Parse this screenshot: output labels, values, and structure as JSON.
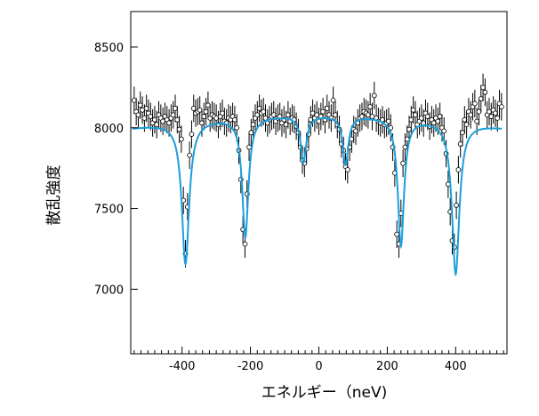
{
  "chart_data": {
    "type": "scatter",
    "xlabel": "エネルギー（neV)",
    "ylabel": "散乱強度",
    "xlim": [
      -550,
      550
    ],
    "ylim": [
      6600,
      8720
    ],
    "xticks": [
      -400,
      -200,
      0,
      200,
      400
    ],
    "yticks": [
      7000,
      7500,
      8000,
      8500
    ],
    "grid": false,
    "colors": {
      "data": "#000000",
      "fit": "#1a9fdc"
    },
    "fit": {
      "baseline": 8080,
      "curvature": -80,
      "dips": [
        {
          "center": -390,
          "depth": 880,
          "width": 13
        },
        {
          "center": -215,
          "depth": 740,
          "width": 11
        },
        {
          "center": -45,
          "depth": 290,
          "width": 10
        },
        {
          "center": 78,
          "depth": 300,
          "width": 10
        },
        {
          "center": 240,
          "depth": 790,
          "width": 11
        },
        {
          "center": 400,
          "depth": 940,
          "width": 13
        }
      ]
    },
    "series": [
      {
        "points": [
          [
            -540,
            8170
          ],
          [
            -534,
            8100
          ],
          [
            -528,
            8080
          ],
          [
            -522,
            8140
          ],
          [
            -516,
            8110
          ],
          [
            -510,
            8060
          ],
          [
            -504,
            8120
          ],
          [
            -498,
            8090
          ],
          [
            -492,
            8070
          ],
          [
            -486,
            8030
          ],
          [
            -480,
            8050
          ],
          [
            -474,
            8020
          ],
          [
            -468,
            8080
          ],
          [
            -462,
            8060
          ],
          [
            -456,
            8040
          ],
          [
            -450,
            8070
          ],
          [
            -444,
            8050
          ],
          [
            -438,
            8030
          ],
          [
            -432,
            8060
          ],
          [
            -426,
            8080
          ],
          [
            -420,
            8120
          ],
          [
            -414,
            8050
          ],
          [
            -408,
            7990
          ],
          [
            -402,
            7930
          ],
          [
            -396,
            7550
          ],
          [
            -390,
            7220
          ],
          [
            -384,
            7510
          ],
          [
            -378,
            7830
          ],
          [
            -372,
            7960
          ],
          [
            -366,
            8120
          ],
          [
            -360,
            8090
          ],
          [
            -354,
            8100
          ],
          [
            -348,
            8110
          ],
          [
            -342,
            8030
          ],
          [
            -336,
            8070
          ],
          [
            -330,
            8100
          ],
          [
            -324,
            8140
          ],
          [
            -318,
            8060
          ],
          [
            -312,
            8080
          ],
          [
            -306,
            8070
          ],
          [
            -300,
            8060
          ],
          [
            -294,
            8020
          ],
          [
            -288,
            8070
          ],
          [
            -282,
            8090
          ],
          [
            -276,
            8040
          ],
          [
            -270,
            8030
          ],
          [
            -264,
            8060
          ],
          [
            -258,
            8050
          ],
          [
            -252,
            8070
          ],
          [
            -246,
            8050
          ],
          [
            -240,
            8000
          ],
          [
            -234,
            7860
          ],
          [
            -228,
            7680
          ],
          [
            -222,
            7370
          ],
          [
            -216,
            7280
          ],
          [
            -210,
            7590
          ],
          [
            -204,
            7880
          ],
          [
            -198,
            7970
          ],
          [
            -192,
            8020
          ],
          [
            -186,
            8060
          ],
          [
            -180,
            8080
          ],
          [
            -174,
            8120
          ],
          [
            -168,
            8090
          ],
          [
            -162,
            8100
          ],
          [
            -156,
            8060
          ],
          [
            -150,
            8030
          ],
          [
            -144,
            8050
          ],
          [
            -138,
            8070
          ],
          [
            -132,
            8080
          ],
          [
            -126,
            8040
          ],
          [
            -120,
            8060
          ],
          [
            -114,
            8070
          ],
          [
            -108,
            8030
          ],
          [
            -102,
            8050
          ],
          [
            -96,
            8020
          ],
          [
            -90,
            8080
          ],
          [
            -84,
            8040
          ],
          [
            -78,
            8060
          ],
          [
            -72,
            8050
          ],
          [
            -66,
            8010
          ],
          [
            -60,
            7970
          ],
          [
            -54,
            7880
          ],
          [
            -48,
            7800
          ],
          [
            -42,
            7780
          ],
          [
            -36,
            7870
          ],
          [
            -30,
            7960
          ],
          [
            -24,
            8050
          ],
          [
            -18,
            8090
          ],
          [
            -12,
            8060
          ],
          [
            -6,
            8080
          ],
          [
            0,
            8040
          ],
          [
            6,
            8070
          ],
          [
            12,
            8100
          ],
          [
            18,
            8050
          ],
          [
            24,
            8120
          ],
          [
            30,
            8080
          ],
          [
            36,
            8060
          ],
          [
            42,
            8170
          ],
          [
            48,
            8080
          ],
          [
            54,
            8020
          ],
          [
            60,
            7990
          ],
          [
            66,
            7900
          ],
          [
            72,
            7860
          ],
          [
            78,
            7760
          ],
          [
            84,
            7740
          ],
          [
            90,
            7880
          ],
          [
            96,
            7930
          ],
          [
            102,
            7990
          ],
          [
            108,
            7980
          ],
          [
            114,
            8030
          ],
          [
            120,
            8060
          ],
          [
            126,
            8070
          ],
          [
            132,
            8100
          ],
          [
            138,
            8090
          ],
          [
            144,
            8080
          ],
          [
            150,
            8130
          ],
          [
            156,
            8070
          ],
          [
            162,
            8200
          ],
          [
            168,
            8060
          ],
          [
            174,
            8040
          ],
          [
            180,
            8030
          ],
          [
            186,
            8050
          ],
          [
            192,
            8020
          ],
          [
            198,
            8030
          ],
          [
            204,
            8040
          ],
          [
            210,
            8000
          ],
          [
            216,
            7880
          ],
          [
            222,
            7720
          ],
          [
            228,
            7340
          ],
          [
            234,
            7280
          ],
          [
            240,
            7470
          ],
          [
            246,
            7780
          ],
          [
            252,
            7880
          ],
          [
            258,
            7930
          ],
          [
            264,
            7990
          ],
          [
            270,
            8050
          ],
          [
            276,
            8110
          ],
          [
            282,
            8080
          ],
          [
            288,
            8020
          ],
          [
            294,
            8040
          ],
          [
            300,
            8060
          ],
          [
            306,
            8030
          ],
          [
            312,
            8090
          ],
          [
            318,
            8070
          ],
          [
            324,
            8010
          ],
          [
            330,
            8050
          ],
          [
            336,
            8030
          ],
          [
            342,
            8060
          ],
          [
            348,
            8040
          ],
          [
            354,
            8070
          ],
          [
            360,
            8000
          ],
          [
            366,
            7980
          ],
          [
            372,
            7840
          ],
          [
            378,
            7650
          ],
          [
            384,
            7480
          ],
          [
            390,
            7300
          ],
          [
            396,
            7260
          ],
          [
            402,
            7520
          ],
          [
            408,
            7740
          ],
          [
            414,
            7900
          ],
          [
            420,
            7970
          ],
          [
            426,
            8050
          ],
          [
            432,
            8020
          ],
          [
            438,
            8100
          ],
          [
            444,
            8080
          ],
          [
            450,
            8130
          ],
          [
            456,
            8150
          ],
          [
            462,
            8040
          ],
          [
            468,
            8100
          ],
          [
            474,
            8180
          ],
          [
            480,
            8250
          ],
          [
            486,
            8220
          ],
          [
            492,
            8080
          ],
          [
            498,
            8100
          ],
          [
            504,
            8070
          ],
          [
            510,
            8110
          ],
          [
            516,
            8090
          ],
          [
            522,
            8060
          ],
          [
            528,
            8150
          ],
          [
            534,
            8130
          ]
        ],
        "error": 85
      }
    ]
  }
}
